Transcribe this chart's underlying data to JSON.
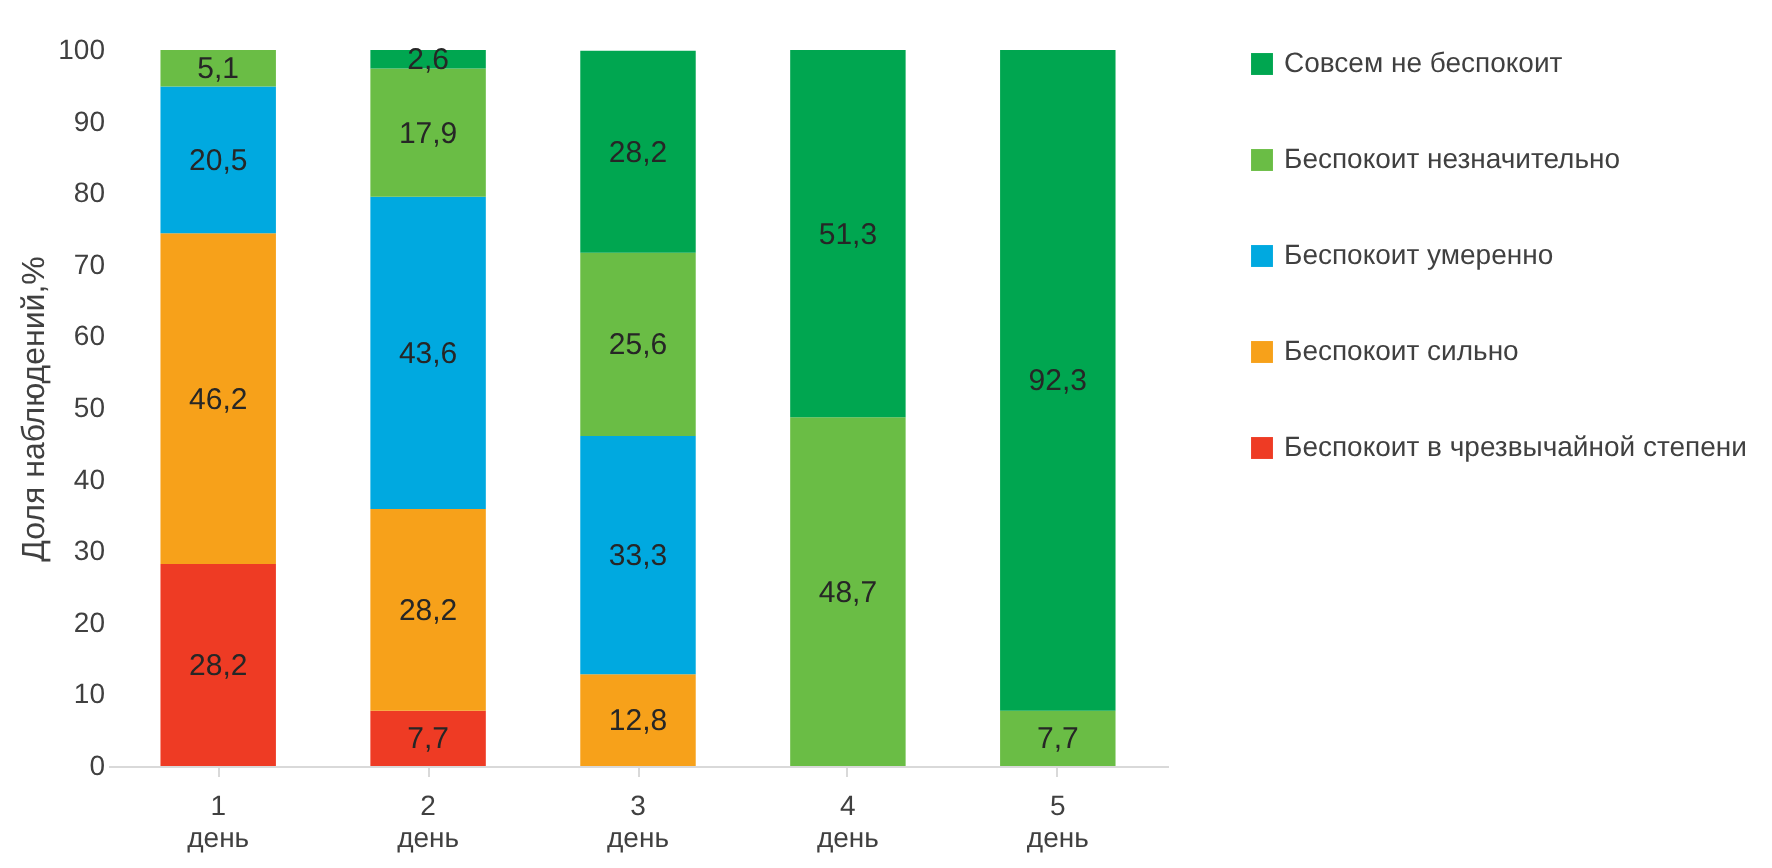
{
  "chart_data": {
    "type": "bar",
    "stacked": true,
    "ylabel": "Доля наблюдений,%",
    "categories": [
      "1 день",
      "2 день",
      "3 день",
      "4 день",
      "5 день"
    ],
    "ylim": [
      0,
      100
    ],
    "yticks": [
      0,
      10,
      20,
      30,
      40,
      50,
      60,
      70,
      80,
      90,
      100
    ],
    "grid": false,
    "legend": "right",
    "series": [
      {
        "name": "Беспокоит  в чрезвычайной степени",
        "color": "#ee3b24",
        "values": [
          28.2,
          7.7,
          0,
          0,
          0
        ],
        "value_labels": [
          "28,2",
          "7,7",
          null,
          null,
          null
        ]
      },
      {
        "name": "Беспокоит сильно",
        "color": "#f7a11a",
        "values": [
          46.2,
          28.2,
          12.8,
          0,
          0
        ],
        "value_labels": [
          "46,2",
          "28,2",
          "12,8",
          null,
          null
        ]
      },
      {
        "name": "Беспокоит умеренно",
        "color": "#00a9e0",
        "values": [
          20.5,
          43.6,
          33.3,
          0,
          0
        ],
        "value_labels": [
          "20,5",
          "43,6",
          "33,3",
          null,
          null
        ]
      },
      {
        "name": "Беспокоит незначительно",
        "color": "#6abd45",
        "values": [
          5.1,
          17.9,
          25.6,
          48.7,
          7.7
        ],
        "value_labels": [
          "5,1",
          "17,9",
          "25,6",
          "48,7",
          "7,7"
        ]
      },
      {
        "name": "Совсем не беспокоит",
        "color": "#00a650",
        "values": [
          0,
          2.6,
          28.2,
          51.3,
          92.3
        ],
        "value_labels": [
          null,
          "2,6",
          "28,2",
          "51,3",
          "92,3"
        ]
      }
    ]
  }
}
